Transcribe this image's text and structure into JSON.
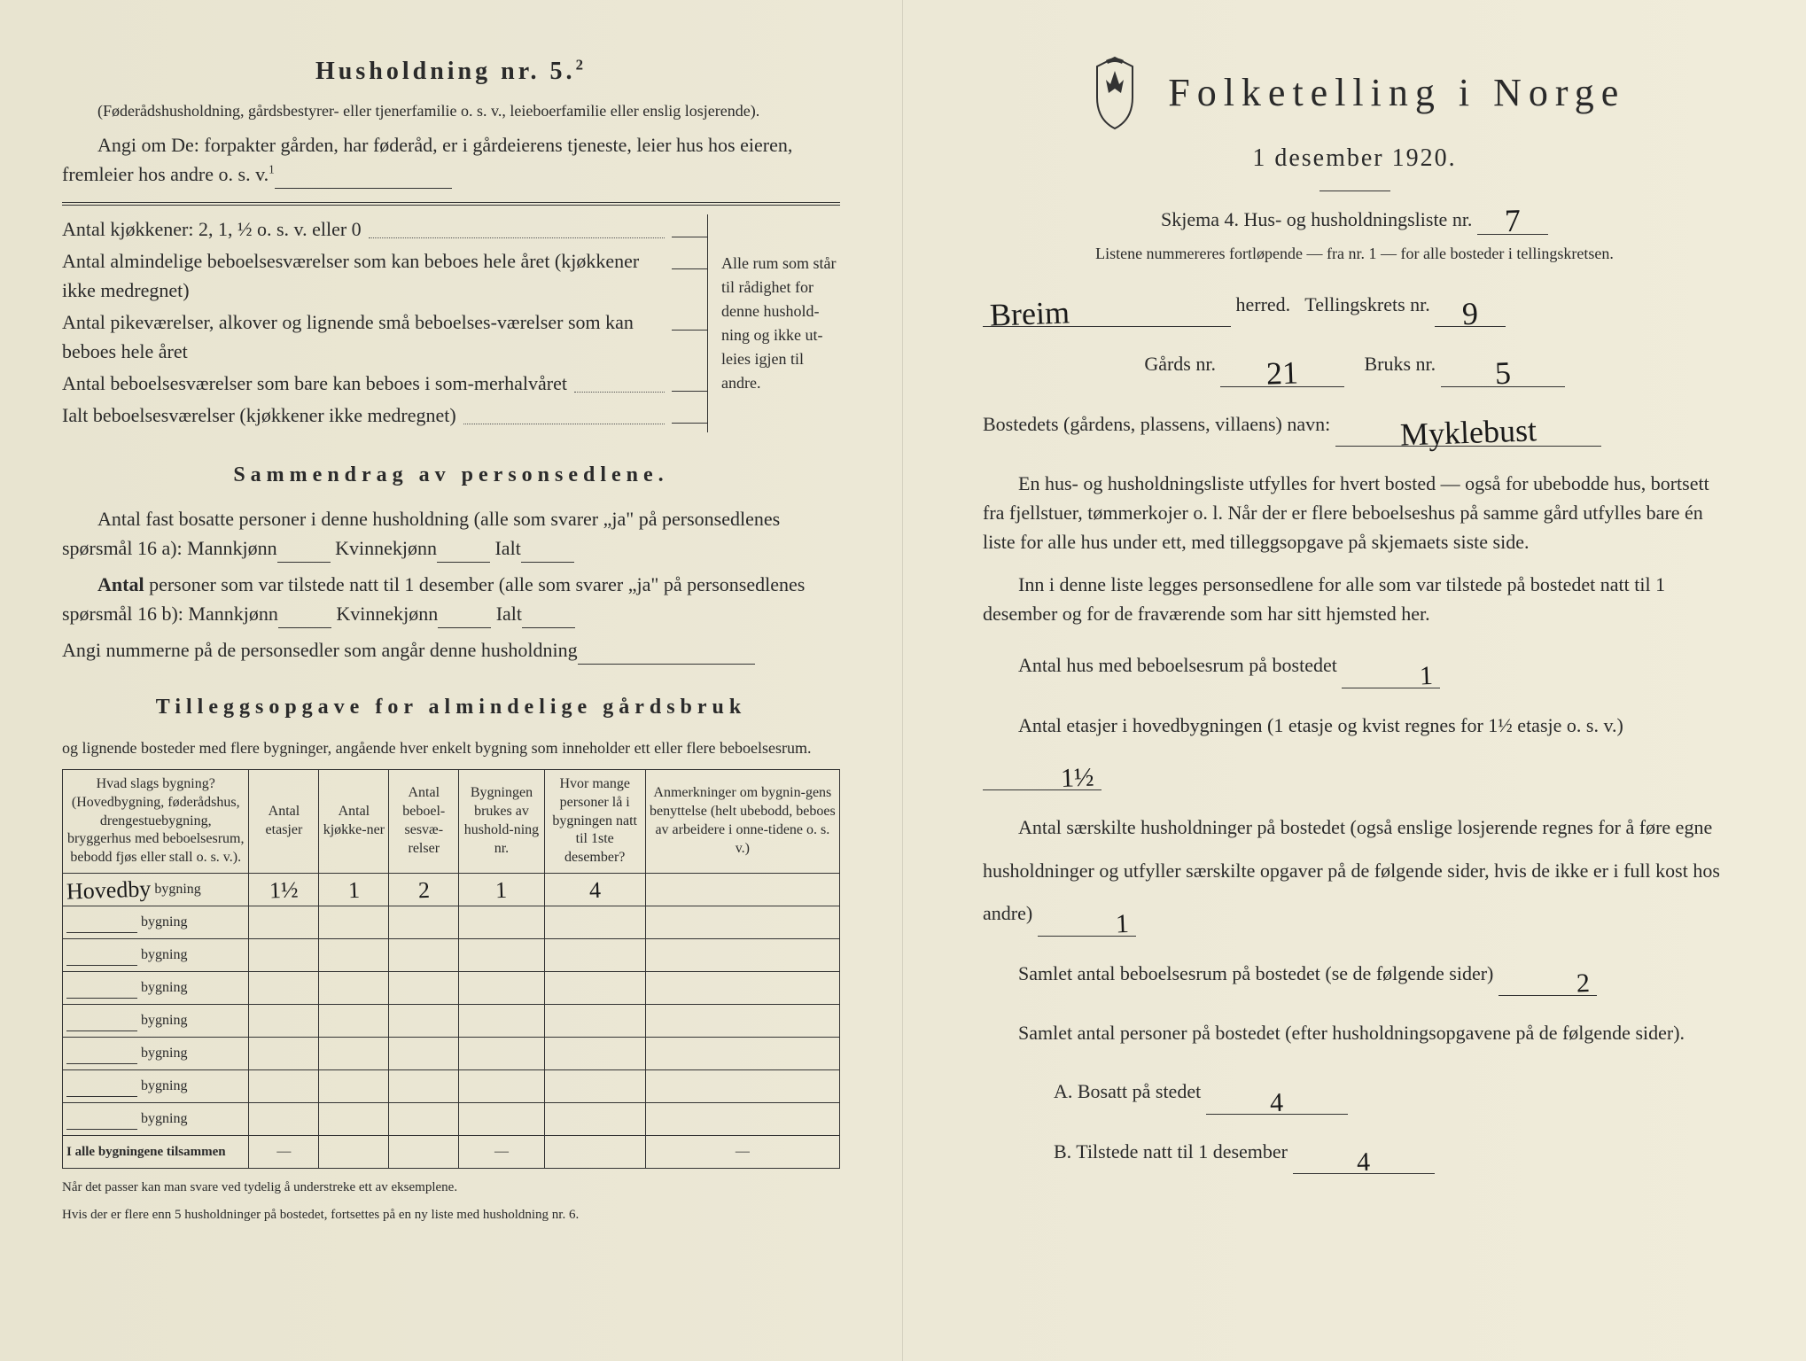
{
  "left": {
    "title": "Husholdning nr. 5.",
    "title_super": "2",
    "intro1": "(Føderådshusholdning, gårdsbestyrer- eller tjenerfamilie o. s. v., leieboerfamilie eller enslig losjerende).",
    "intro2": "Angi om De: forpakter gården, har føderåd, er i gårdeierens tjeneste, leier hus hos eieren, fremleier hos andre o. s. v.",
    "intro2_super": "1",
    "kitchen_rows": [
      "Antal kjøkkener: 2, 1, ½ o. s. v. eller 0",
      "Antal almindelige beboelsesværelser som kan beboes hele året (kjøkkener ikke medregnet)",
      "Antal pikeværelser, alkover og lignende små beboelses-værelser som kan beboes hele året",
      "Antal beboelsesværelser som bare kan beboes i som-merhalvåret",
      "Ialt beboelsesværelser (kjøkkener ikke medregnet)"
    ],
    "kitchen_side": "Alle rum som står til rådighet for denne hushold-ning og ikke ut-leies igjen til andre.",
    "summary_title": "Sammendrag av personsedlene.",
    "summary1": "Antal fast bosatte personer i denne husholdning (alle som svarer „ja\" på personsedlenes spørsmål 16 a): Mannkjønn",
    "summary2": "Kvinnekjønn",
    "summary3": "Ialt",
    "summary4_prefix": "Antal",
    "summary4": " personer som var tilstede natt til 1 desember (alle som svarer „ja\" på personsedlenes spørsmål 16 b): Mannkjønn",
    "summary5": "Angi nummerne på de personsedler som angår denne husholdning",
    "tillegg_title": "Tilleggsopgave for almindelige gårdsbruk",
    "tillegg_sub": "og lignende bosteder med flere bygninger, angående hver enkelt bygning som inneholder ett eller flere beboelsesrum.",
    "table_headers": [
      "Hvad slags bygning? (Hovedbygning, føderådshus, drengestuebygning, bryggerhus med beboelsesrum, bebodd fjøs eller stall o. s. v.).",
      "Antal etasjer",
      "Antal kjøkke-ner",
      "Antal beboel-sesvæ-relser",
      "Bygningen brukes av hushold-ning nr.",
      "Hvor mange personer lå i bygningen natt til 1ste desember?",
      "Anmerkninger om bygnin-gens benyttelse (helt ubebodd, beboes av arbeidere i onne-tidene o. s. v.)"
    ],
    "bygning_rows": 8,
    "bygning_label": "bygning",
    "row1": {
      "name": "Hovedby",
      "vals": [
        "1½",
        "1",
        "2",
        "1",
        "4",
        ""
      ]
    },
    "total_row": "I alle bygningene tilsammen",
    "footnote1": "Når det passer kan man svare ved tydelig å understreke ett av eksemplene.",
    "footnote2": "Hvis der er flere enn 5 husholdninger på bostedet, fortsettes på en ny liste med husholdning nr. 6."
  },
  "right": {
    "title": "Folketelling i Norge",
    "subtitle": "1 desember 1920.",
    "skjema": "Skjema 4.   Hus- og husholdningsliste nr.",
    "skjema_val": "7",
    "listene": "Listene nummereres fortløpende — fra nr. 1 — for alle bosteder i tellingskretsen.",
    "herred_val": "Breim",
    "herred_label": "herred.",
    "krets_label": "Tellingskrets nr.",
    "krets_val": "9",
    "gards_label": "Gårds nr.",
    "gards_val": "21",
    "bruks_label": "Bruks nr.",
    "bruks_val": "5",
    "bosted_label": "Bostedets (gårdens, plassens, villaens) navn:",
    "bosted_val": "Myklebust",
    "para1": "En hus- og husholdningsliste utfylles for hvert bosted — også for ubebodde hus, bortsett fra fjellstuer, tømmerkojer o. l. Når der er flere beboelseshus på samme gård utfylles bare én liste for alle hus under ett, med tilleggsopgave på skjemaets siste side.",
    "para1_bold1": "Når",
    "para1_bold2": "flere beboelseshus",
    "para1_bold3": "tilleggsopgave på",
    "para1_bold4": "siste side.",
    "para2": "Inn i denne liste legges personsedlene for alle som var tilstede på bostedet natt til 1 desember og for de fraværende som har sitt hjemsted her.",
    "q1": "Antal hus med beboelsesrum på bostedet",
    "q1_val": "1",
    "q2": "Antal etasjer i hovedbygningen (1 etasje og kvist regnes for 1½ etasje o. s. v.)",
    "q2_val": "1½",
    "q3": "Antal særskilte husholdninger på bostedet (også enslige losjerende regnes for å føre egne husholdninger og utfyller særskilte opgaver på de følgende sider, hvis de ikke er i full kost hos andre)",
    "q3_val": "1",
    "q4": "Samlet antal beboelsesrum på bostedet (se de følgende sider)",
    "q4_val": "2",
    "q5": "Samlet antal personer på bostedet (efter husholdningsopgavene på de følgende sider).",
    "qA": "A. Bosatt på stedet",
    "qA_val": "4",
    "qB": "B. Tilstede natt til 1 desember",
    "qB_val": "4"
  }
}
